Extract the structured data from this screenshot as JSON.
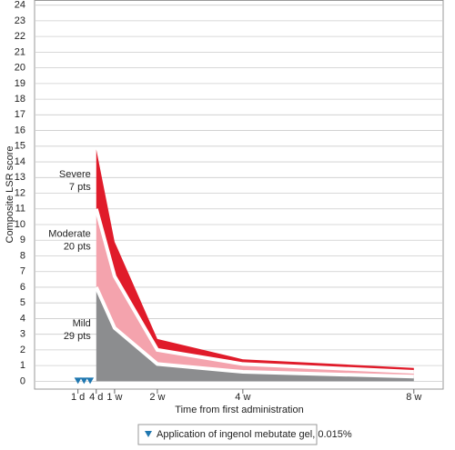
{
  "chart_data": {
    "type": "stacked-area",
    "y_label": "Composite LSR score",
    "x_label": "Time from first administration",
    "x": [
      4,
      7,
      14,
      28,
      56
    ],
    "series": [
      {
        "name": "Mild",
        "patients": "29 pts",
        "color": "#8c8d8f",
        "values": [
          6,
          3.4,
          1.1,
          0.6,
          0.3
        ]
      },
      {
        "name": "Moderate",
        "patients": "20 pts",
        "color": "#f4a3ad",
        "values": [
          5,
          3.3,
          0.9,
          0.5,
          0.3
        ]
      },
      {
        "name": "Severe",
        "patients": "7 pts",
        "color": "#e01b2a",
        "values": [
          3.8,
          2.2,
          0.7,
          0.3,
          0.25
        ]
      }
    ],
    "application_days": [
      1,
      2,
      3
    ],
    "application_color": "#1f77b0",
    "legend_text": "Application of ingenol mebutate gel, 0.015%",
    "xlim": [
      -6.1,
      60.8
    ],
    "ylim": [
      -0.5,
      24.3
    ],
    "xticks": [
      {
        "value": 1,
        "label": "1 d"
      },
      {
        "value": 4,
        "label": "4 d"
      },
      {
        "value": 7,
        "label": "1 w"
      },
      {
        "value": 14,
        "label": "2 w"
      },
      {
        "value": 28,
        "label": "4 w"
      },
      {
        "value": 56,
        "label": "8 w"
      }
    ],
    "yticks": [
      0,
      1,
      2,
      3,
      4,
      5,
      6,
      7,
      8,
      9,
      10,
      11,
      12,
      13,
      14,
      15,
      16,
      17,
      18,
      19,
      20,
      21,
      22,
      23,
      24
    ],
    "grid": true
  }
}
